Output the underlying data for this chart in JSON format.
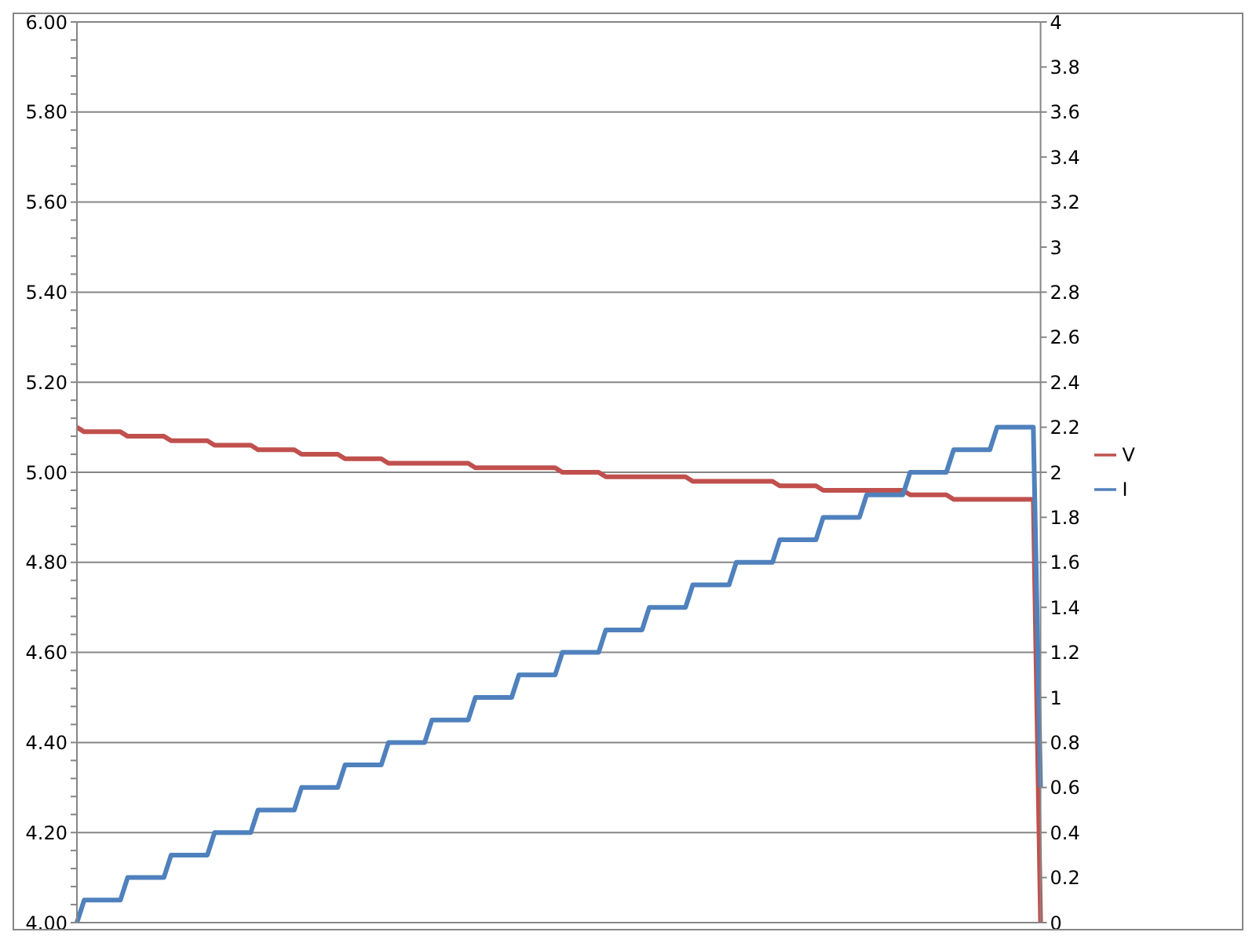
{
  "chart_data": {
    "type": "line",
    "categories": [
      null,
      null,
      null,
      null,
      null,
      null,
      null,
      null,
      null,
      null,
      null,
      null,
      null,
      null,
      null,
      null,
      null,
      null,
      null,
      null,
      null,
      null,
      null,
      null,
      null,
      null,
      null,
      null,
      null,
      null,
      null,
      null,
      null,
      null,
      null,
      null,
      null,
      null,
      null,
      null,
      null,
      null,
      null,
      null,
      null,
      null,
      null,
      null,
      null,
      null,
      null,
      null,
      null,
      null,
      null,
      null,
      null,
      null,
      null,
      null,
      null,
      null,
      null,
      null,
      null,
      null,
      null,
      null,
      null,
      null,
      null,
      null,
      null,
      null,
      null,
      null,
      null,
      null,
      null,
      null,
      null,
      null,
      null,
      null,
      null,
      null,
      null,
      null,
      null,
      null,
      null,
      null,
      null,
      null,
      null,
      null,
      null,
      null,
      null,
      null,
      null,
      null,
      null,
      null,
      null,
      null,
      null,
      null,
      null,
      null,
      null,
      null,
      null,
      null,
      null,
      null,
      null,
      null,
      null,
      null,
      null,
      null,
      null,
      null,
      null,
      null,
      null,
      null,
      null,
      null,
      null,
      null,
      null,
      null
    ],
    "series": [
      {
        "name": "V",
        "color": "#c0504d",
        "values": [
          5.1,
          5.09,
          5.09,
          5.09,
          5.09,
          5.09,
          5.09,
          5.08,
          5.08,
          5.08,
          5.08,
          5.08,
          5.08,
          5.07,
          5.07,
          5.07,
          5.07,
          5.07,
          5.07,
          5.06,
          5.06,
          5.06,
          5.06,
          5.06,
          5.06,
          5.05,
          5.05,
          5.05,
          5.05,
          5.05,
          5.05,
          5.04,
          5.04,
          5.04,
          5.04,
          5.04,
          5.04,
          5.03,
          5.03,
          5.03,
          5.03,
          5.03,
          5.03,
          5.02,
          5.02,
          5.02,
          5.02,
          5.02,
          5.02,
          5.02,
          5.02,
          5.02,
          5.02,
          5.02,
          5.02,
          5.01,
          5.01,
          5.01,
          5.01,
          5.01,
          5.01,
          5.01,
          5.01,
          5.01,
          5.01,
          5.01,
          5.01,
          5.0,
          5.0,
          5.0,
          5.0,
          5.0,
          5.0,
          4.99,
          4.99,
          4.99,
          4.99,
          4.99,
          4.99,
          4.99,
          4.99,
          4.99,
          4.99,
          4.99,
          4.99,
          4.98,
          4.98,
          4.98,
          4.98,
          4.98,
          4.98,
          4.98,
          4.98,
          4.98,
          4.98,
          4.98,
          4.98,
          4.97,
          4.97,
          4.97,
          4.97,
          4.97,
          4.97,
          4.96,
          4.96,
          4.96,
          4.96,
          4.96,
          4.96,
          4.96,
          4.96,
          4.96,
          4.96,
          4.96,
          4.96,
          4.95,
          4.95,
          4.95,
          4.95,
          4.95,
          4.95,
          4.94,
          4.94,
          4.94,
          4.94,
          4.94,
          4.94,
          4.94,
          4.94,
          4.94,
          4.94,
          4.94,
          4.94,
          4.0
        ]
      },
      {
        "name": "I",
        "color": "#4f81bd",
        "axis": "y2",
        "values": [
          0,
          0.1,
          0.1,
          0.1,
          0.1,
          0.1,
          0.1,
          0.2,
          0.2,
          0.2,
          0.2,
          0.2,
          0.2,
          0.3,
          0.3,
          0.3,
          0.3,
          0.3,
          0.3,
          0.4,
          0.4,
          0.4,
          0.4,
          0.4,
          0.4,
          0.5,
          0.5,
          0.5,
          0.5,
          0.5,
          0.5,
          0.6,
          0.6,
          0.6,
          0.6,
          0.6,
          0.6,
          0.7,
          0.7,
          0.7,
          0.7,
          0.7,
          0.7,
          0.8,
          0.8,
          0.8,
          0.8,
          0.8,
          0.8,
          0.9,
          0.9,
          0.9,
          0.9,
          0.9,
          0.9,
          1.0,
          1.0,
          1.0,
          1.0,
          1.0,
          1.0,
          1.1,
          1.1,
          1.1,
          1.1,
          1.1,
          1.1,
          1.2,
          1.2,
          1.2,
          1.2,
          1.2,
          1.2,
          1.3,
          1.3,
          1.3,
          1.3,
          1.3,
          1.3,
          1.4,
          1.4,
          1.4,
          1.4,
          1.4,
          1.4,
          1.5,
          1.5,
          1.5,
          1.5,
          1.5,
          1.5,
          1.6,
          1.6,
          1.6,
          1.6,
          1.6,
          1.6,
          1.7,
          1.7,
          1.7,
          1.7,
          1.7,
          1.7,
          1.8,
          1.8,
          1.8,
          1.8,
          1.8,
          1.8,
          1.9,
          1.9,
          1.9,
          1.9,
          1.9,
          1.9,
          2.0,
          2.0,
          2.0,
          2.0,
          2.0,
          2.0,
          2.1,
          2.1,
          2.1,
          2.1,
          2.1,
          2.1,
          2.2,
          2.2,
          2.2,
          2.2,
          2.2,
          2.2,
          0.6
        ]
      }
    ],
    "ylim": [
      4,
      6
    ],
    "yticks": [
      {
        "value": 4,
        "label": "4.00"
      },
      {
        "value": 4.04,
        "label": null
      },
      {
        "value": 4.08,
        "label": null
      },
      {
        "value": 4.12,
        "label": null
      },
      {
        "value": 4.16,
        "label": null
      },
      {
        "value": 4.2,
        "label": "4.20"
      },
      {
        "value": 4.24,
        "label": null
      },
      {
        "value": 4.28,
        "label": null
      },
      {
        "value": 4.32,
        "label": null
      },
      {
        "value": 4.36,
        "label": null
      },
      {
        "value": 4.4,
        "label": "4.40"
      },
      {
        "value": 4.44,
        "label": null
      },
      {
        "value": 4.48,
        "label": null
      },
      {
        "value": 4.52,
        "label": null
      },
      {
        "value": 4.56,
        "label": null
      },
      {
        "value": 4.6,
        "label": "4.60"
      },
      {
        "value": 4.64,
        "label": null
      },
      {
        "value": 4.68,
        "label": null
      },
      {
        "value": 4.72,
        "label": null
      },
      {
        "value": 4.76,
        "label": null
      },
      {
        "value": 4.8,
        "label": "4.80"
      },
      {
        "value": 4.84,
        "label": null
      },
      {
        "value": 4.88,
        "label": null
      },
      {
        "value": 4.92,
        "label": null
      },
      {
        "value": 4.96,
        "label": null
      },
      {
        "value": 5,
        "label": "5.00"
      },
      {
        "value": 5.04,
        "label": null
      },
      {
        "value": 5.08,
        "label": null
      },
      {
        "value": 5.12,
        "label": null
      },
      {
        "value": 5.16,
        "label": null
      },
      {
        "value": 5.2,
        "label": "5.20"
      },
      {
        "value": 5.24,
        "label": null
      },
      {
        "value": 5.28,
        "label": null
      },
      {
        "value": 5.32,
        "label": null
      },
      {
        "value": 5.36,
        "label": null
      },
      {
        "value": 5.4,
        "label": "5.40"
      },
      {
        "value": 5.44,
        "label": null
      },
      {
        "value": 5.48,
        "label": null
      },
      {
        "value": 5.52,
        "label": null
      },
      {
        "value": 5.56,
        "label": null
      },
      {
        "value": 5.6,
        "label": "5.60"
      },
      {
        "value": 5.64,
        "label": null
      },
      {
        "value": 5.68,
        "label": null
      },
      {
        "value": 5.72,
        "label": null
      },
      {
        "value": 5.76,
        "label": null
      },
      {
        "value": 5.8,
        "label": "5.80"
      },
      {
        "value": 5.84,
        "label": null
      },
      {
        "value": 5.88,
        "label": null
      },
      {
        "value": 5.92,
        "label": null
      },
      {
        "value": 5.96,
        "label": null
      },
      {
        "value": 6,
        "label": "6.00"
      }
    ],
    "y2lim": [
      0,
      4
    ],
    "y2ticks": [
      0,
      0.2,
      0.4,
      0.6,
      0.8,
      1,
      1.2,
      1.4,
      1.6,
      1.8,
      2,
      2.2,
      2.4,
      2.6,
      2.8,
      3,
      3.2,
      3.4,
      3.6,
      3.8,
      4
    ],
    "grid": "y",
    "legend": "right"
  }
}
